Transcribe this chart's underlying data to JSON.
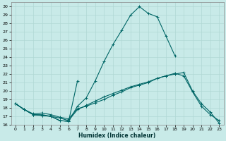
{
  "xlabel": "Humidex (Indice chaleur)",
  "bg_color": "#c8eae8",
  "grid_color": "#b0d8d4",
  "line_color": "#006666",
  "xlim": [
    -0.5,
    23.5
  ],
  "ylim": [
    16,
    30.5
  ],
  "xticks": [
    0,
    1,
    2,
    3,
    4,
    5,
    6,
    7,
    8,
    9,
    10,
    11,
    12,
    13,
    14,
    15,
    16,
    17,
    18,
    19,
    20,
    21,
    22,
    23
  ],
  "yticks": [
    16,
    17,
    18,
    19,
    20,
    21,
    22,
    23,
    24,
    25,
    26,
    27,
    28,
    29,
    30
  ],
  "lines": [
    {
      "x": [
        0,
        1,
        2,
        3,
        4,
        5,
        6,
        7,
        8,
        9,
        10,
        11,
        12,
        13,
        14,
        15,
        16,
        17,
        18
      ],
      "y": [
        18.5,
        17.8,
        17.2,
        17.1,
        17.0,
        16.5,
        16.4,
        18.2,
        19.2,
        21.2,
        23.5,
        25.5,
        27.2,
        29.0,
        30.0,
        29.2,
        28.8,
        26.5,
        24.2
      ]
    },
    {
      "x": [
        0,
        1,
        2,
        3,
        4,
        5,
        6,
        7
      ],
      "y": [
        18.5,
        17.8,
        17.2,
        17.1,
        17.0,
        16.5,
        16.4,
        21.2
      ]
    },
    {
      "x": [
        0,
        1,
        2,
        3,
        4,
        5,
        6,
        7,
        8,
        9,
        10,
        11,
        12,
        13,
        14,
        15,
        16,
        17,
        18,
        19,
        20,
        21,
        22,
        23
      ],
      "y": [
        18.5,
        17.8,
        17.2,
        17.2,
        17.0,
        16.8,
        16.5,
        17.8,
        18.3,
        18.8,
        19.3,
        19.7,
        20.1,
        20.5,
        20.8,
        21.1,
        21.5,
        21.8,
        22.0,
        22.2,
        20.0,
        18.5,
        17.5,
        16.2
      ]
    },
    {
      "x": [
        0,
        1,
        2,
        3,
        4,
        5,
        6,
        7,
        8,
        9,
        10,
        11,
        12,
        13,
        14,
        15,
        16,
        17,
        18,
        19,
        20,
        21,
        22,
        23
      ],
      "y": [
        18.5,
        17.8,
        17.3,
        17.4,
        17.2,
        16.9,
        16.7,
        17.9,
        18.2,
        18.6,
        19.0,
        19.5,
        19.9,
        20.4,
        20.7,
        21.0,
        21.5,
        21.8,
        22.1,
        21.8,
        19.9,
        18.2,
        17.2,
        16.5
      ]
    }
  ]
}
